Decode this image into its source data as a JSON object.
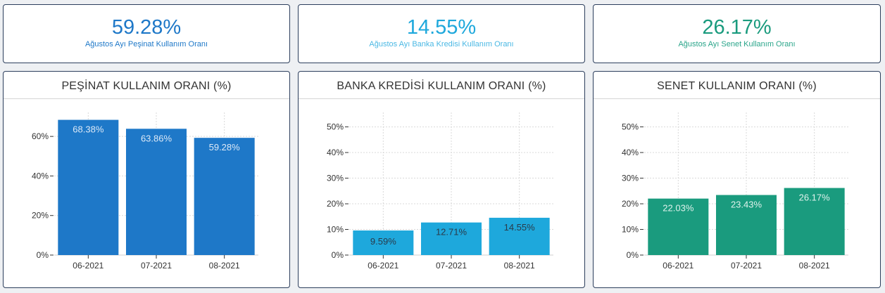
{
  "kpis": [
    {
      "value": "59.28%",
      "label": "Ağustos Ayı Peşinat Kullanım Oranı",
      "color": "#1e78c8",
      "label_color": "#1e78c8"
    },
    {
      "value": "14.55%",
      "label": "Ağustos Ayı Banka Kredisi Kullanım Oranı",
      "color": "#1ea8dc",
      "label_color": "#4ab8e4"
    },
    {
      "value": "26.17%",
      "label": "Ağustos Ayı Senet Kullanım Oranı",
      "color": "#1a9b7e",
      "label_color": "#2aa58a"
    }
  ],
  "chart_data": [
    {
      "type": "bar",
      "title": "PEŞİNAT KULLANIM ORANI (%)",
      "categories": [
        "06-2021",
        "07-2021",
        "08-2021"
      ],
      "values": [
        68.38,
        63.86,
        59.28
      ],
      "data_labels": [
        "68.38%",
        "63.86%",
        "59.28%"
      ],
      "yticks": [
        0,
        20,
        40,
        60
      ],
      "ytick_labels": [
        "0%",
        "20%",
        "40%",
        "60%"
      ],
      "ylim": [
        0,
        70
      ],
      "bar_color": "#1e78c8",
      "label_color": "#dce9f7",
      "grid": true
    },
    {
      "type": "bar",
      "title": "BANKA KREDİSİ KULLANIM ORANI (%)",
      "categories": [
        "06-2021",
        "07-2021",
        "08-2021"
      ],
      "values": [
        9.59,
        12.71,
        14.55
      ],
      "data_labels": [
        "9.59%",
        "12.71%",
        "14.55%"
      ],
      "yticks": [
        0,
        10,
        20,
        30,
        40,
        50
      ],
      "ytick_labels": [
        "0%",
        "10%",
        "20%",
        "30%",
        "40%",
        "50%"
      ],
      "ylim": [
        0,
        54
      ],
      "bar_color": "#1ea8dc",
      "label_color": "#2a3a4a",
      "grid": true
    },
    {
      "type": "bar",
      "title": "SENET KULLANIM ORANI (%)",
      "categories": [
        "06-2021",
        "07-2021",
        "08-2021"
      ],
      "values": [
        22.03,
        23.43,
        26.17
      ],
      "data_labels": [
        "22.03%",
        "23.43%",
        "26.17%"
      ],
      "yticks": [
        0,
        10,
        20,
        30,
        40,
        50
      ],
      "ytick_labels": [
        "0%",
        "10%",
        "20%",
        "30%",
        "40%",
        "50%"
      ],
      "ylim": [
        0,
        54
      ],
      "bar_color": "#1a9b7e",
      "label_color": "#dff2ec",
      "grid": true
    }
  ]
}
